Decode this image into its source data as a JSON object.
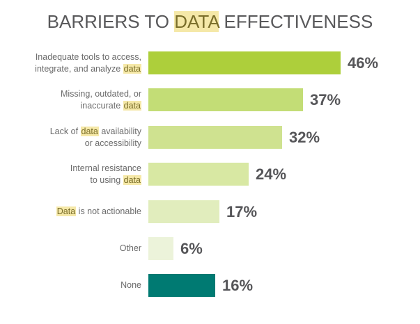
{
  "chart_data": {
    "type": "bar",
    "orientation": "horizontal",
    "title": {
      "before": "BARRIERS TO ",
      "highlight": "DATA",
      "after": " EFFECTIVENESS"
    },
    "xlim": [
      0,
      50
    ],
    "grid": false,
    "categories": [
      {
        "line1_pre": "Inadequate tools to access,",
        "line1_hl": "",
        "line1_post": "",
        "line2_pre": "integrate, and analyze ",
        "line2_hl": "data",
        "line2_post": ""
      },
      {
        "line1_pre": "Missing, outdated, or",
        "line1_hl": "",
        "line1_post": "",
        "line2_pre": "inaccurate ",
        "line2_hl": "data",
        "line2_post": ""
      },
      {
        "line1_pre": "Lack of ",
        "line1_hl": "data",
        "line1_post": " availability",
        "line2_pre": "or accessibility",
        "line2_hl": "",
        "line2_post": ""
      },
      {
        "line1_pre": "Internal resistance",
        "line1_hl": "",
        "line1_post": "",
        "line2_pre": "to using ",
        "line2_hl": "data",
        "line2_post": ""
      },
      {
        "line1_pre": "",
        "line1_hl": "Data",
        "line1_post": " is not actionable",
        "line2_pre": "",
        "line2_hl": "",
        "line2_post": ""
      },
      {
        "line1_pre": "Other",
        "line1_hl": "",
        "line1_post": "",
        "line2_pre": "",
        "line2_hl": "",
        "line2_post": ""
      },
      {
        "line1_pre": "None",
        "line1_hl": "",
        "line1_post": "",
        "line2_pre": "",
        "line2_hl": "",
        "line2_post": ""
      }
    ],
    "values": [
      46,
      37,
      32,
      24,
      17,
      6,
      16
    ],
    "value_labels": [
      "46%",
      "37%",
      "32%",
      "24%",
      "17%",
      "6%",
      "16%"
    ],
    "colors": [
      "#adcf3b",
      "#c3dd76",
      "#cfe290",
      "#d8e8a3",
      "#e1edbd",
      "#ecf3da",
      "#007a72"
    ]
  }
}
